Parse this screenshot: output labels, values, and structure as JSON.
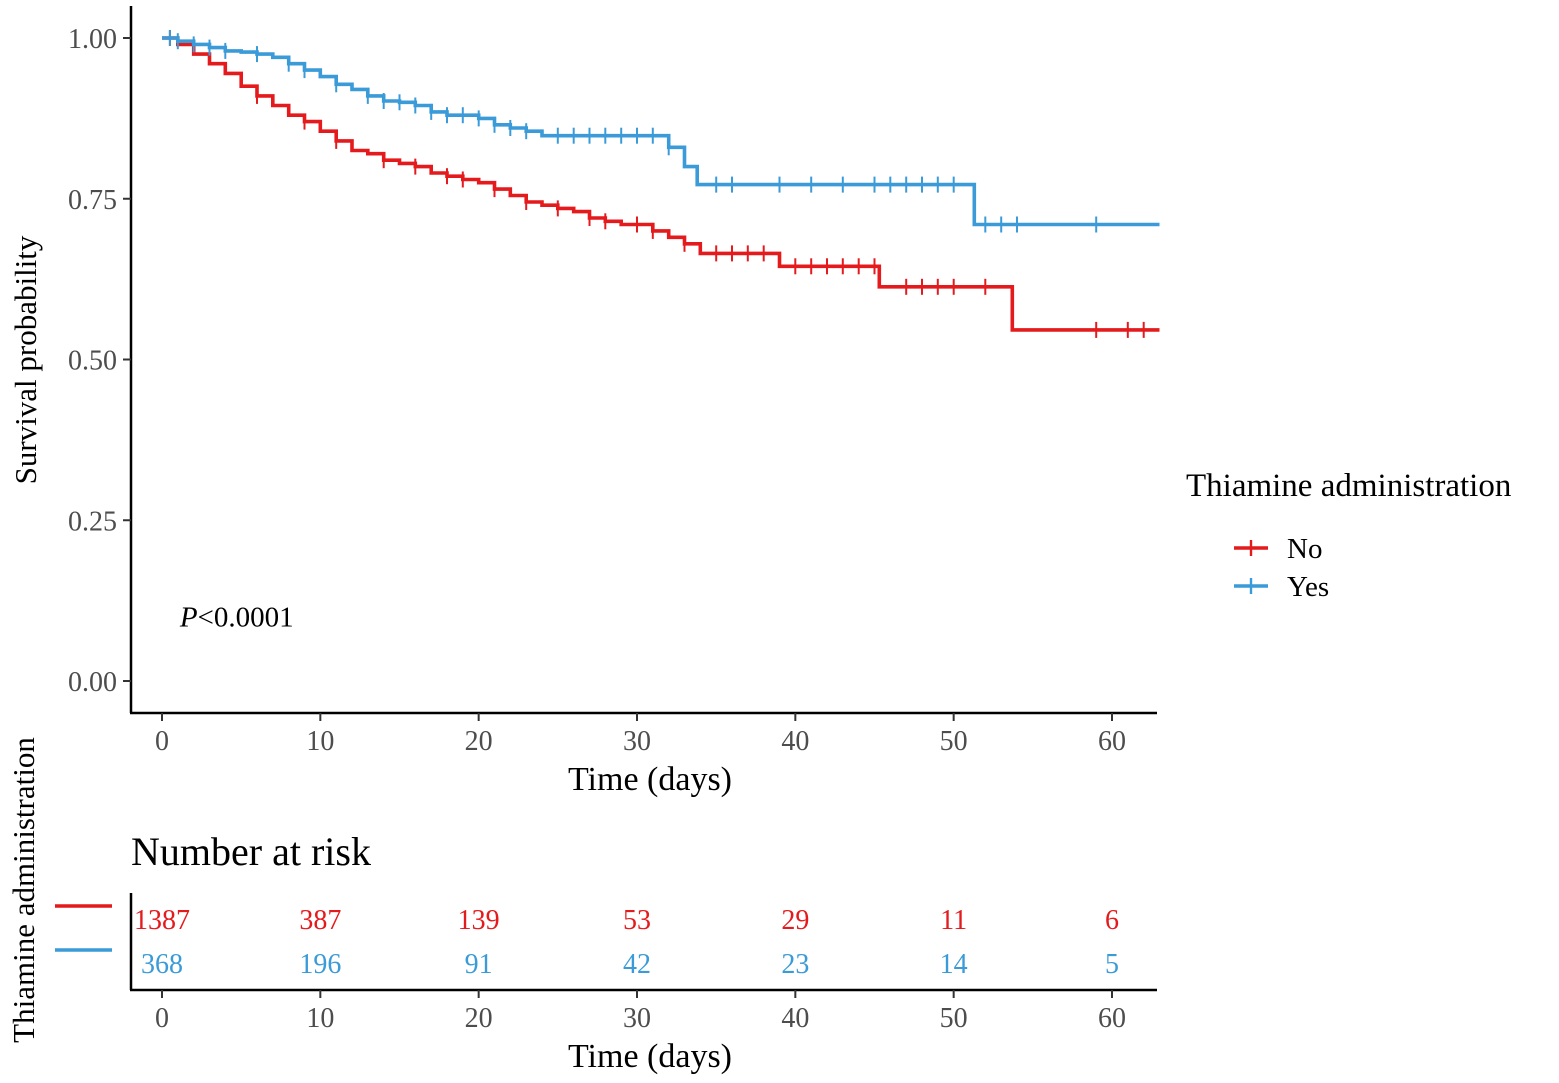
{
  "chart_data": [
    {
      "type": "line",
      "subtype": "kaplan-meier",
      "title": "",
      "xlabel": "Time (days)",
      "ylabel": "Survival probability",
      "xlim": [
        -2,
        63
      ],
      "ylim": [
        0,
        1.05
      ],
      "x_ticks": [
        0,
        10,
        20,
        30,
        40,
        50,
        60
      ],
      "x_tick_labels": [
        "0",
        "10",
        "20",
        "30",
        "40",
        "50",
        "60"
      ],
      "y_ticks": [
        0,
        0.25,
        0.5,
        0.75,
        1.0
      ],
      "y_tick_labels": [
        "0.00",
        "0.25",
        "0.50",
        "0.75",
        "1.00"
      ],
      "grid": false,
      "annotation": {
        "italic": "P",
        "rest": "<0.0001",
        "x": 1,
        "y": 0.1
      },
      "legend": {
        "title": "Thiamine administration",
        "position": "right",
        "entries": [
          "No",
          "Yes"
        ]
      },
      "series": [
        {
          "name": "No",
          "color": "#e41a1c",
          "points": [
            [
              0,
              1.0
            ],
            [
              1,
              0.99
            ],
            [
              2,
              0.975
            ],
            [
              3,
              0.96
            ],
            [
              4,
              0.945
            ],
            [
              5,
              0.925
            ],
            [
              6,
              0.91
            ],
            [
              7,
              0.895
            ],
            [
              8,
              0.88
            ],
            [
              9,
              0.87
            ],
            [
              10,
              0.855
            ],
            [
              11,
              0.84
            ],
            [
              12,
              0.825
            ],
            [
              13,
              0.82
            ],
            [
              14,
              0.81
            ],
            [
              15,
              0.805
            ],
            [
              16,
              0.8
            ],
            [
              17,
              0.79
            ],
            [
              18,
              0.785
            ],
            [
              19,
              0.78
            ],
            [
              20,
              0.775
            ],
            [
              21,
              0.765
            ],
            [
              22,
              0.755
            ],
            [
              23,
              0.745
            ],
            [
              24,
              0.74
            ],
            [
              25,
              0.735
            ],
            [
              26,
              0.73
            ],
            [
              27,
              0.72
            ],
            [
              28,
              0.715
            ],
            [
              29,
              0.71
            ],
            [
              30,
              0.71
            ],
            [
              31,
              0.7
            ],
            [
              32,
              0.69
            ],
            [
              33,
              0.68
            ],
            [
              34,
              0.665
            ],
            [
              38,
              0.665
            ],
            [
              39,
              0.645
            ],
            [
              45.3,
              0.645
            ],
            [
              45.3,
              0.613
            ],
            [
              53.7,
              0.613
            ],
            [
              53.7,
              0.546
            ],
            [
              63,
              0.546
            ]
          ],
          "censor_times": [
            0.5,
            6,
            9,
            11,
            14,
            16,
            18,
            19,
            21,
            23,
            25,
            27,
            28,
            30,
            31,
            33,
            35,
            36,
            37,
            38,
            40,
            41,
            42,
            43,
            44,
            45,
            47,
            48,
            49,
            50,
            52,
            59,
            61,
            62
          ]
        },
        {
          "name": "Yes",
          "color": "#3a9bd8",
          "points": [
            [
              0,
              1.0
            ],
            [
              1,
              0.995
            ],
            [
              2,
              0.99
            ],
            [
              3,
              0.985
            ],
            [
              4,
              0.98
            ],
            [
              5,
              0.978
            ],
            [
              6,
              0.975
            ],
            [
              7,
              0.97
            ],
            [
              8,
              0.96
            ],
            [
              9,
              0.95
            ],
            [
              10,
              0.94
            ],
            [
              11,
              0.928
            ],
            [
              12,
              0.92
            ],
            [
              13,
              0.91
            ],
            [
              14,
              0.902
            ],
            [
              15,
              0.9
            ],
            [
              16,
              0.895
            ],
            [
              17,
              0.885
            ],
            [
              18,
              0.88
            ],
            [
              20,
              0.875
            ],
            [
              21,
              0.865
            ],
            [
              22,
              0.86
            ],
            [
              23,
              0.855
            ],
            [
              24,
              0.848
            ],
            [
              31,
              0.848
            ],
            [
              32,
              0.83
            ],
            [
              33,
              0.8
            ],
            [
              33.8,
              0.772
            ],
            [
              51.3,
              0.772
            ],
            [
              51.3,
              0.71
            ],
            [
              63,
              0.71
            ]
          ],
          "censor_times": [
            0.5,
            1,
            2,
            3,
            4,
            6,
            8,
            9,
            11,
            13,
            14,
            15,
            16,
            17,
            18,
            19,
            20,
            21,
            22,
            23,
            25,
            26,
            27,
            28,
            29,
            30,
            31,
            32,
            35,
            36,
            39,
            41,
            43,
            45,
            46,
            47,
            48,
            49,
            50,
            52,
            53,
            54,
            59
          ]
        }
      ]
    },
    {
      "type": "table",
      "title": "Number at risk",
      "xlabel": "Time (days)",
      "ylabel": "Thiamine administration",
      "xlim": [
        -2,
        63
      ],
      "x_ticks": [
        0,
        10,
        20,
        30,
        40,
        50,
        60
      ],
      "x_tick_labels": [
        "0",
        "10",
        "20",
        "30",
        "40",
        "50",
        "60"
      ],
      "rows": [
        {
          "name": "No",
          "color": "#e41a1c",
          "values": [
            "1387",
            "387",
            "139",
            "53",
            "29",
            "11",
            "6"
          ]
        },
        {
          "name": "Yes",
          "color": "#3a9bd8",
          "values": [
            "368",
            "196",
            "91",
            "42",
            "23",
            "14",
            "5"
          ]
        }
      ]
    }
  ]
}
